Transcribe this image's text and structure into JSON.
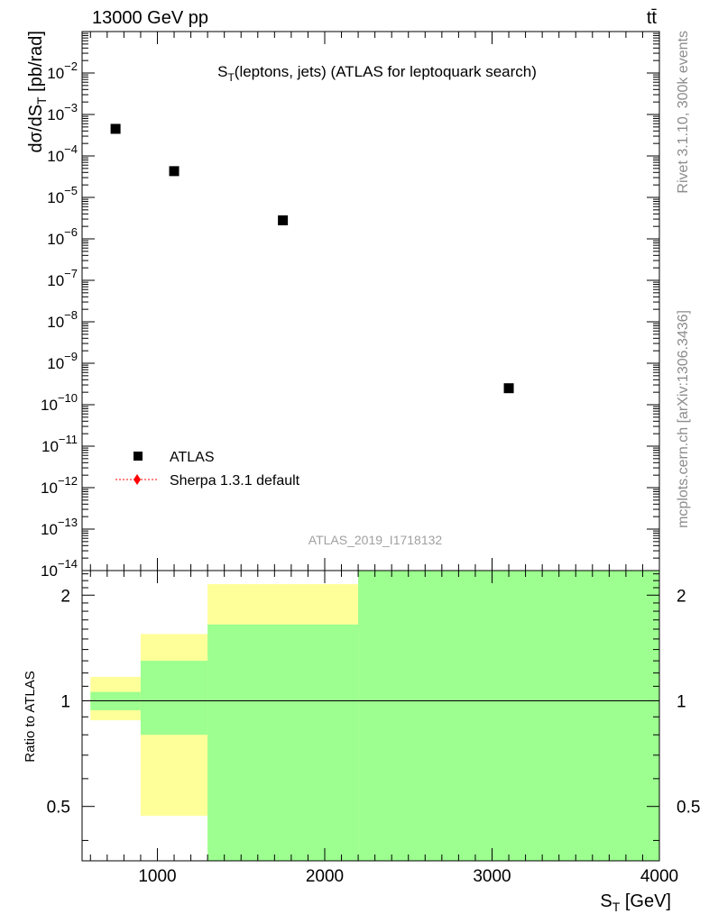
{
  "header": {
    "left": "13000 GeV pp",
    "right": "tt̄"
  },
  "side_labels": {
    "top": "Rivet 3.1.10,  300k events",
    "bottom": "mcplots.cern.ch [arXiv:1306.3436]"
  },
  "analysis_id": "ATLAS_2019_I1718132",
  "colors": {
    "data": "#000000",
    "mc": "#ff0000",
    "band_inner": "#9cff8f",
    "band_outer": "#ffff9a"
  },
  "chart_data": [
    {
      "type": "scatter",
      "title": "S_T(leptons, jets) (ATLAS for leptoquark search)",
      "ylabel": "dσ/dS_T [pb/rad]",
      "yscale": "log",
      "xlim": [
        550,
        4000
      ],
      "ylim": [
        1e-14,
        0.1
      ],
      "ytick_labels": [
        "10^-14",
        "10^-13",
        "10^-12",
        "10^-11",
        "10^-10",
        "10^-9",
        "10^-8",
        "10^-7",
        "10^-6",
        "10^-5",
        "10^-4",
        "10^-3",
        "10^-2"
      ],
      "legend_position": "lower-left",
      "series": [
        {
          "name": "ATLAS",
          "marker": "square",
          "x": [
            750,
            1100,
            1750,
            3100
          ],
          "y": [
            0.00045,
            4.3e-05,
            2.8e-06,
            2.5e-10
          ]
        },
        {
          "name": "Sherpa 1.3.1 default",
          "marker": "diamond",
          "x": [],
          "y": []
        }
      ]
    },
    {
      "type": "area",
      "ylabel": "Ratio to ATLAS",
      "xlabel": "S_T [GeV]",
      "xlim": [
        550,
        4000
      ],
      "ylim": [
        0.35,
        2.35
      ],
      "xtick_labels": [
        "1000",
        "2000",
        "3000",
        "4000"
      ],
      "ytick_labels": [
        "0.5",
        "1",
        "2"
      ],
      "reference_line": 1,
      "bins": [
        {
          "x_low": 600,
          "x_high": 900,
          "inner": [
            0.94,
            1.06
          ],
          "outer": [
            0.88,
            1.17
          ]
        },
        {
          "x_low": 900,
          "x_high": 1300,
          "inner": [
            0.8,
            1.3
          ],
          "outer": [
            0.47,
            1.55
          ]
        },
        {
          "x_low": 1300,
          "x_high": 2200,
          "inner": [
            0.35,
            1.65
          ],
          "outer": [
            0.35,
            2.15
          ]
        },
        {
          "x_low": 2200,
          "x_high": 4000,
          "inner": [
            0.35,
            2.35
          ],
          "outer": [
            0.35,
            2.35
          ]
        }
      ]
    }
  ]
}
